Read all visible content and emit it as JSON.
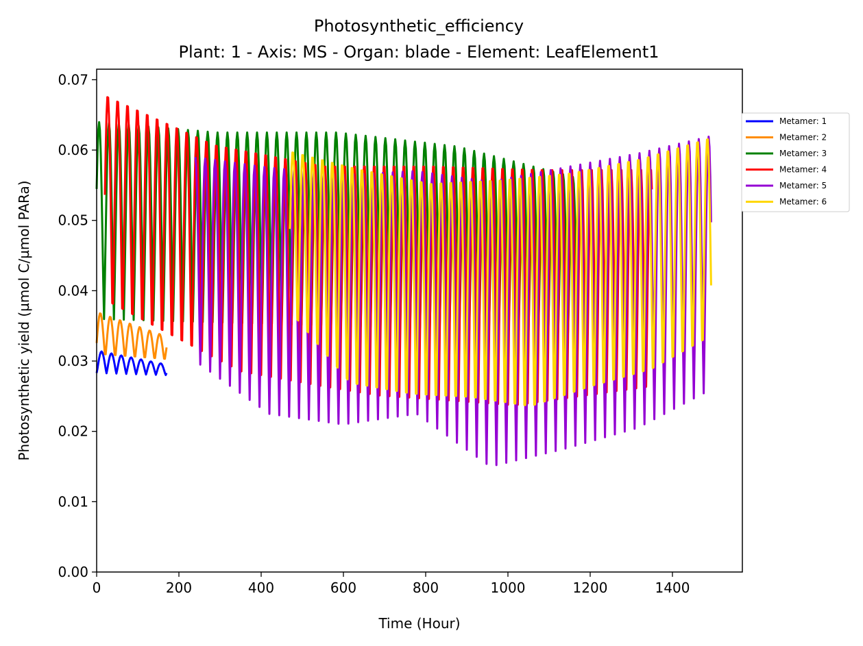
{
  "chart_data": {
    "type": "line",
    "title": "Photosynthetic_efficiency",
    "subtitle": "Plant: 1 - Axis: MS - Organ: blade - Element: LeafElement1",
    "xlabel": "Time (Hour)",
    "ylabel": "Photosynthetic yield (µmol C/µmol PARa)",
    "xlim": [
      0,
      1570
    ],
    "ylim": [
      0,
      0.0715
    ],
    "xticks": [
      "0",
      "200",
      "400",
      "600",
      "800",
      "1000",
      "1200",
      "1400"
    ],
    "yticks": [
      "0.00",
      "0.01",
      "0.02",
      "0.03",
      "0.04",
      "0.05",
      "0.06",
      "0.07"
    ],
    "grid": false,
    "legend_position": "right",
    "day_period_hours": 24,
    "series": [
      {
        "name": "Metamer: 1",
        "color": "#0000ff",
        "x_start": 0,
        "x_end": 170,
        "day_min": [
          0.0283,
          0.028
        ],
        "day_max": [
          0.0315,
          0.0295
        ]
      },
      {
        "name": "Metamer: 2",
        "color": "#ff8c00",
        "x_start": 0,
        "x_end": 170,
        "day_min": [
          0.0305,
          0.03
        ],
        "day_max": [
          0.037,
          0.0335
        ]
      },
      {
        "name": "Metamer: 3",
        "color": "#008000",
        "x_start": 0,
        "x_end": 1170,
        "day_min": [
          0.036,
          0.034
        ],
        "day_max": [
          0.064,
          0.0625,
          0.0625,
          0.0605,
          0.056
        ]
      },
      {
        "name": "Metamer: 4",
        "color": "#ff0000",
        "x_start": 20,
        "x_end": 1350,
        "day_min": [
          0.036,
          0.0255,
          0.022,
          0.0205,
          0.0235
        ],
        "day_max": [
          0.068,
          0.061,
          0.058,
          0.058,
          0.0575,
          0.0575
        ]
      },
      {
        "name": "Metamer: 5",
        "color": "#9400d3",
        "x_start": 240,
        "x_end": 1495,
        "day_min": [
          0.03,
          0.0225,
          0.021,
          0.0225,
          0.015,
          0.0175,
          0.0205,
          0.026
        ],
        "day_max": [
          0.059,
          0.0575,
          0.0565,
          0.057,
          0.0555,
          0.0575,
          0.0595,
          0.062
        ]
      },
      {
        "name": "Metamer: 6",
        "color": "#ffd700",
        "x_start": 470,
        "x_end": 1495,
        "day_min": [
          0.035,
          0.024,
          0.0225,
          0.022,
          0.0205,
          0.0235,
          0.026,
          0.031
        ],
        "day_max": [
          0.06,
          0.0575,
          0.0555,
          0.056,
          0.057,
          0.059,
          0.062
        ]
      }
    ]
  }
}
